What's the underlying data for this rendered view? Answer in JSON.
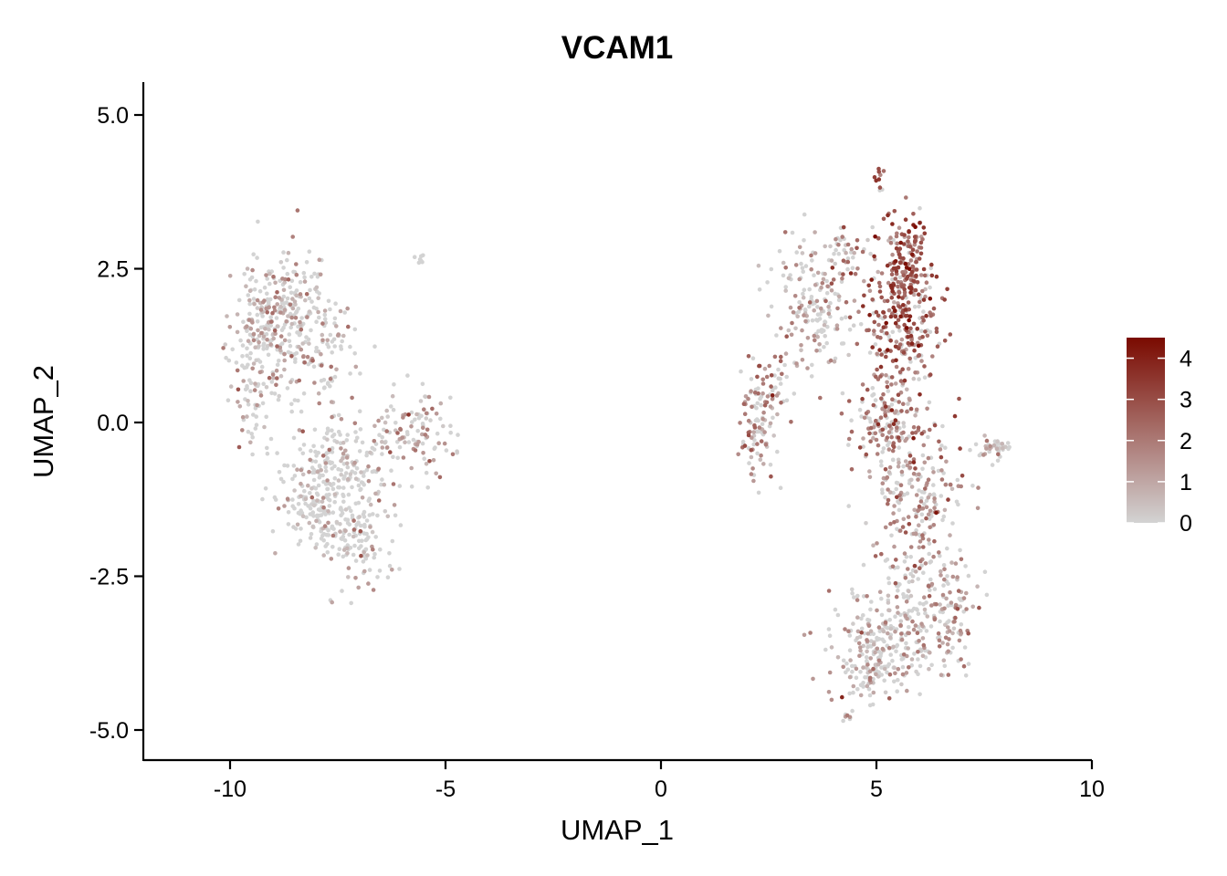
{
  "chart_data": {
    "type": "scatter",
    "title": "VCAM1",
    "xlabel": "UMAP_1",
    "ylabel": "UMAP_2",
    "xlim": [
      -12.0,
      10.0
    ],
    "ylim": [
      -5.5,
      5.5
    ],
    "x_ticks": [
      -10,
      -5,
      0,
      5,
      10
    ],
    "x_tick_labels": [
      "-10",
      "-5",
      "0",
      "5",
      "10"
    ],
    "y_ticks": [
      5.0,
      2.5,
      0.0,
      -2.5,
      -5.0
    ],
    "y_tick_labels": [
      "5.0",
      "2.5",
      "0.0",
      "-2.5",
      "-5.0"
    ],
    "grid": false,
    "legend_position": "right",
    "color_scale": {
      "low_color": "#d3d3d3",
      "high_color": "#7a0a00",
      "min": 0,
      "max": 4.5,
      "tick_values": [
        4,
        3,
        2,
        1,
        0
      ],
      "tick_labels": [
        "4",
        "3",
        "2",
        "1",
        "0"
      ]
    },
    "clusters": [
      {
        "center": [
          -8.8,
          1.8
        ],
        "spread": [
          0.55,
          0.45
        ],
        "n": 260,
        "expr_mean": 0.9
      },
      {
        "center": [
          -9.4,
          0.7
        ],
        "spread": [
          0.35,
          0.6
        ],
        "n": 120,
        "expr_mean": 0.8
      },
      {
        "center": [
          -7.8,
          1.0
        ],
        "spread": [
          0.45,
          0.45
        ],
        "n": 90,
        "expr_mean": 0.9
      },
      {
        "center": [
          -7.4,
          -0.7
        ],
        "spread": [
          0.6,
          0.35
        ],
        "n": 160,
        "expr_mean": 0.4
      },
      {
        "center": [
          -7.9,
          -1.4
        ],
        "spread": [
          0.55,
          0.35
        ],
        "n": 160,
        "expr_mean": 0.3
      },
      {
        "center": [
          -6.9,
          -1.9
        ],
        "spread": [
          0.45,
          0.4
        ],
        "n": 110,
        "expr_mean": 0.6
      },
      {
        "center": [
          -5.8,
          -0.2
        ],
        "spread": [
          0.5,
          0.35
        ],
        "n": 110,
        "expr_mean": 1.2
      },
      {
        "center": [
          -5.6,
          2.65
        ],
        "spread": [
          0.06,
          0.04
        ],
        "n": 8,
        "expr_mean": 0.3
      },
      {
        "center": [
          5.7,
          2.7
        ],
        "spread": [
          0.3,
          0.35
        ],
        "n": 150,
        "expr_mean": 2.8
      },
      {
        "center": [
          5.6,
          1.6
        ],
        "spread": [
          0.45,
          0.45
        ],
        "n": 220,
        "expr_mean": 2.6
      },
      {
        "center": [
          3.6,
          1.9
        ],
        "spread": [
          0.5,
          0.6
        ],
        "n": 170,
        "expr_mean": 0.8
      },
      {
        "center": [
          4.4,
          2.8
        ],
        "spread": [
          0.35,
          0.2
        ],
        "n": 40,
        "expr_mean": 1.2
      },
      {
        "center": [
          5.05,
          3.95
        ],
        "spread": [
          0.08,
          0.1
        ],
        "n": 10,
        "expr_mean": 2.5
      },
      {
        "center": [
          2.3,
          -0.1
        ],
        "spread": [
          0.22,
          0.45
        ],
        "n": 90,
        "expr_mean": 1.8
      },
      {
        "center": [
          2.6,
          0.6
        ],
        "spread": [
          0.3,
          0.3
        ],
        "n": 40,
        "expr_mean": 1.3
      },
      {
        "center": [
          5.3,
          0.1
        ],
        "spread": [
          0.45,
          0.45
        ],
        "n": 170,
        "expr_mean": 1.9
      },
      {
        "center": [
          5.9,
          -1.2
        ],
        "spread": [
          0.55,
          0.55
        ],
        "n": 190,
        "expr_mean": 1.6
      },
      {
        "center": [
          5.9,
          -2.6
        ],
        "spread": [
          0.6,
          0.35
        ],
        "n": 110,
        "expr_mean": 1.3
      },
      {
        "center": [
          5.2,
          -3.6
        ],
        "spread": [
          0.7,
          0.35
        ],
        "n": 230,
        "expr_mean": 0.8
      },
      {
        "center": [
          6.8,
          -3.2
        ],
        "spread": [
          0.25,
          0.45
        ],
        "n": 70,
        "expr_mean": 1.5
      },
      {
        "center": [
          4.8,
          -4.2
        ],
        "spread": [
          0.35,
          0.2
        ],
        "n": 60,
        "expr_mean": 1.0
      },
      {
        "center": [
          7.8,
          -0.4
        ],
        "spread": [
          0.22,
          0.1
        ],
        "n": 40,
        "expr_mean": 0.8
      },
      {
        "center": [
          4.35,
          -4.85
        ],
        "spread": [
          0.05,
          0.1
        ],
        "n": 7,
        "expr_mean": 1.0
      }
    ]
  }
}
